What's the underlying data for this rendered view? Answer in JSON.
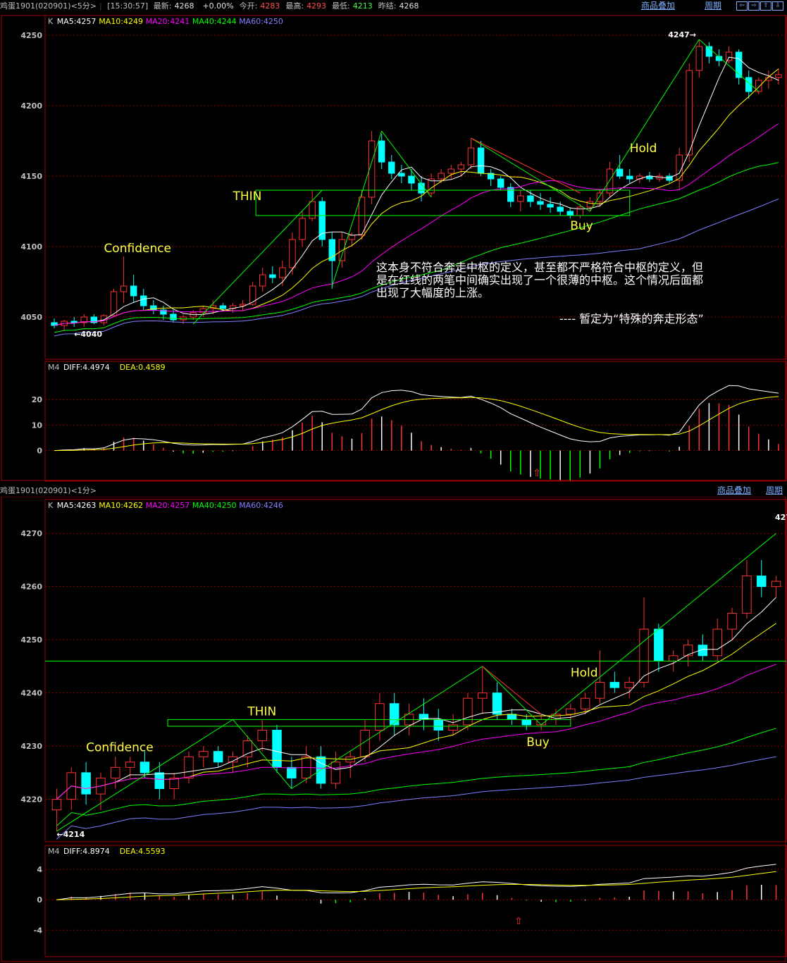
{
  "top_header": {
    "symbol": "鸡蛋1901(020901)<5分>",
    "time": "[15:30:57]",
    "fields": [
      {
        "label": "最新:",
        "value": "4268",
        "color": "#e0e0e0"
      },
      {
        "label": "",
        "value": "+0.00%",
        "color": "#e0e0e0"
      },
      {
        "label": "今开:",
        "value": "4283",
        "color": "#ff5050"
      },
      {
        "label": "最高:",
        "value": "4293",
        "color": "#ff5050"
      },
      {
        "label": "最低:",
        "value": "4213",
        "color": "#40ff40"
      },
      {
        "label": "昨结:",
        "value": "4268",
        "color": "#e0e0e0"
      }
    ],
    "overlay_link": "商品叠加",
    "period_link": "周期",
    "nav_buttons": [
      "⇦",
      "⇨",
      "⇧",
      "⇩"
    ]
  },
  "bottom_header": {
    "symbol": "鸡蛋1901(020901)<1分>",
    "overlay_link": "商品叠加",
    "period_link": "周期"
  },
  "colors": {
    "up": "#ff3232",
    "down": "#00ffff",
    "ma5": "#ffffff",
    "ma10": "#ffff00",
    "ma20": "#ff00ff",
    "ma40": "#00ff00",
    "ma60": "#8080ff",
    "grid": "#8b0000",
    "annot_yellow": "#ffff40"
  },
  "chart_data": [
    {
      "name": "5min-kline",
      "type": "candlestick",
      "legend": {
        "k": "K",
        "ma5": "MA5:4257",
        "ma10": "MA10:4249",
        "ma20": "MA20:4241",
        "ma40": "MA40:4244",
        "ma60": "MA60:4250"
      },
      "ylim": [
        4020,
        4255
      ],
      "yticks": [
        4050,
        4100,
        4150,
        4200,
        4250
      ],
      "ohlc": [
        [
          4046,
          4049,
          4042,
          4044
        ],
        [
          4044,
          4048,
          4040,
          4047
        ],
        [
          4047,
          4050,
          4043,
          4046
        ],
        [
          4046,
          4052,
          4043,
          4050
        ],
        [
          4050,
          4052,
          4045,
          4046
        ],
        [
          4046,
          4052,
          4044,
          4051
        ],
        [
          4051,
          4070,
          4050,
          4068
        ],
        [
          4068,
          4093,
          4060,
          4072
        ],
        [
          4072,
          4080,
          4060,
          4065
        ],
        [
          4065,
          4070,
          4055,
          4058
        ],
        [
          4058,
          4062,
          4052,
          4055
        ],
        [
          4055,
          4058,
          4048,
          4052
        ],
        [
          4052,
          4055,
          4046,
          4048
        ],
        [
          4048,
          4052,
          4045,
          4050
        ],
        [
          4050,
          4055,
          4048,
          4053
        ],
        [
          4053,
          4058,
          4050,
          4056
        ],
        [
          4056,
          4062,
          4052,
          4058
        ],
        [
          4058,
          4060,
          4054,
          4056
        ],
        [
          4056,
          4060,
          4053,
          4058
        ],
        [
          4058,
          4062,
          4055,
          4059
        ],
        [
          4059,
          4075,
          4058,
          4072
        ],
        [
          4072,
          4085,
          4068,
          4080
        ],
        [
          4080,
          4086,
          4074,
          4078
        ],
        [
          4078,
          4090,
          4072,
          4085
        ],
        [
          4085,
          4110,
          4080,
          4105
        ],
        [
          4105,
          4125,
          4100,
          4120
        ],
        [
          4120,
          4140,
          4118,
          4132
        ],
        [
          4132,
          4135,
          4100,
          4105
        ],
        [
          4105,
          4110,
          4070,
          4090
        ],
        [
          4090,
          4110,
          4085,
          4105
        ],
        [
          4105,
          4110,
          4100,
          4108
        ],
        [
          4108,
          4140,
          4105,
          4135
        ],
        [
          4135,
          4182,
          4130,
          4175
        ],
        [
          4175,
          4180,
          4155,
          4160
        ],
        [
          4160,
          4165,
          4148,
          4152
        ],
        [
          4152,
          4158,
          4145,
          4150
        ],
        [
          4150,
          4155,
          4140,
          4145
        ],
        [
          4145,
          4150,
          4132,
          4138
        ],
        [
          4138,
          4152,
          4135,
          4148
        ],
        [
          4148,
          4155,
          4145,
          4152
        ],
        [
          4152,
          4158,
          4148,
          4155
        ],
        [
          4155,
          4160,
          4150,
          4158
        ],
        [
          4158,
          4177,
          4155,
          4170
        ],
        [
          4170,
          4175,
          4150,
          4152
        ],
        [
          4152,
          4155,
          4143,
          4148
        ],
        [
          4148,
          4150,
          4140,
          4142
        ],
        [
          4142,
          4145,
          4128,
          4132
        ],
        [
          4132,
          4140,
          4125,
          4136
        ],
        [
          4136,
          4140,
          4128,
          4132
        ],
        [
          4132,
          4138,
          4126,
          4130
        ],
        [
          4130,
          4135,
          4124,
          4128
        ],
        [
          4128,
          4132,
          4122,
          4125
        ],
        [
          4125,
          4128,
          4120,
          4122
        ],
        [
          4122,
          4130,
          4120,
          4128
        ],
        [
          4128,
          4135,
          4125,
          4132
        ],
        [
          4132,
          4140,
          4128,
          4138
        ],
        [
          4138,
          4160,
          4135,
          4155
        ],
        [
          4155,
          4165,
          4148,
          4150
        ],
        [
          4150,
          4155,
          4145,
          4148
        ],
        [
          4148,
          4152,
          4145,
          4150
        ],
        [
          4150,
          4153,
          4146,
          4148
        ],
        [
          4148,
          4152,
          4146,
          4150
        ],
        [
          4150,
          4152,
          4145,
          4147
        ],
        [
          4147,
          4170,
          4140,
          4165
        ],
        [
          4165,
          4230,
          4160,
          4225
        ],
        [
          4225,
          4247,
          4220,
          4242
        ],
        [
          4242,
          4245,
          4230,
          4235
        ],
        [
          4235,
          4240,
          4228,
          4232
        ],
        [
          4232,
          4242,
          4230,
          4238
        ],
        [
          4238,
          4240,
          4215,
          4220
        ],
        [
          4220,
          4225,
          4205,
          4210
        ],
        [
          4210,
          4220,
          4208,
          4218
        ],
        [
          4218,
          4225,
          4212,
          4220
        ],
        [
          4220,
          4226,
          4215,
          4222
        ]
      ],
      "annotations": [
        {
          "text": "Confidence",
          "color": "#ffff40"
        },
        {
          "text": "THIN",
          "color": "#ffff40"
        },
        {
          "text": "Buy",
          "color": "#ffff40"
        },
        {
          "text": "Hold",
          "color": "#ffff40"
        }
      ],
      "note_lines": [
        "这本身不符合奔走中枢的定义，甚至都不严格符合中枢的定义，但",
        "是在红线的两笔中间确实出现了一个很薄的中枢。这个情况后面都",
        "出现了大幅度的上涨。"
      ],
      "note_sign": "----    暂定为“特殊的奔走形态”",
      "low_label": "←4040",
      "high_label": "4247→"
    },
    {
      "name": "5min-macd",
      "type": "macd",
      "legend": {
        "m": "M4",
        "diff": "DIFF:4.4974",
        "dea": "DEA:0.4589"
      },
      "ylim": [
        -12,
        30
      ],
      "yticks": [
        0,
        10,
        20
      ],
      "arrow": "⇧"
    },
    {
      "name": "1min-kline",
      "type": "candlestick",
      "legend": {
        "k": "K",
        "ma5": "MA5:4263",
        "ma10": "MA10:4262",
        "ma20": "MA20:4257",
        "ma40": "MA40:4250",
        "ma60": "MA60:4246"
      },
      "ylim": [
        4212,
        4274
      ],
      "yticks": [
        4220,
        4230,
        4240,
        4250,
        4260,
        4270
      ],
      "ohlc": [
        [
          4218,
          4222,
          4214,
          4220
        ],
        [
          4220,
          4226,
          4218,
          4225
        ],
        [
          4225,
          4227,
          4219,
          4221
        ],
        [
          4221,
          4225,
          4218,
          4224
        ],
        [
          4224,
          4228,
          4222,
          4226
        ],
        [
          4226,
          4228,
          4224,
          4227
        ],
        [
          4227,
          4229,
          4224,
          4225
        ],
        [
          4225,
          4227,
          4220,
          4222
        ],
        [
          4222,
          4225,
          4220,
          4224
        ],
        [
          4224,
          4229,
          4223,
          4228
        ],
        [
          4228,
          4230,
          4226,
          4229
        ],
        [
          4229,
          4230,
          4226,
          4227
        ],
        [
          4227,
          4229,
          4225,
          4228
        ],
        [
          4228,
          4232,
          4226,
          4231
        ],
        [
          4231,
          4235,
          4229,
          4233
        ],
        [
          4233,
          4234,
          4225,
          4226
        ],
        [
          4226,
          4228,
          4222,
          4224
        ],
        [
          4224,
          4230,
          4223,
          4228
        ],
        [
          4228,
          4230,
          4222,
          4223
        ],
        [
          4223,
          4229,
          4222,
          4227
        ],
        [
          4227,
          4229,
          4224,
          4228
        ],
        [
          4228,
          4235,
          4227,
          4233
        ],
        [
          4233,
          4240,
          4231,
          4238
        ],
        [
          4238,
          4240,
          4232,
          4234
        ],
        [
          4234,
          4238,
          4232,
          4236
        ],
        [
          4236,
          4239,
          4233,
          4235
        ],
        [
          4235,
          4237,
          4231,
          4233
        ],
        [
          4233,
          4236,
          4232,
          4234
        ],
        [
          4234,
          4240,
          4233,
          4239
        ],
        [
          4239,
          4245,
          4236,
          4240
        ],
        [
          4240,
          4242,
          4235,
          4236
        ],
        [
          4236,
          4237,
          4234,
          4235
        ],
        [
          4235,
          4236,
          4233,
          4234
        ],
        [
          4234,
          4236,
          4233,
          4235
        ],
        [
          4235,
          4237,
          4234,
          4236
        ],
        [
          4236,
          4238,
          4235,
          4237
        ],
        [
          4237,
          4240,
          4236,
          4239
        ],
        [
          4239,
          4248,
          4238,
          4242
        ],
        [
          4242,
          4244,
          4240,
          4241
        ],
        [
          4241,
          4243,
          4239,
          4242
        ],
        [
          4242,
          4258,
          4241,
          4252
        ],
        [
          4252,
          4253,
          4244,
          4246
        ],
        [
          4246,
          4248,
          4244,
          4247
        ],
        [
          4247,
          4250,
          4245,
          4249
        ],
        [
          4249,
          4251,
          4246,
          4247
        ],
        [
          4247,
          4254,
          4246,
          4252
        ],
        [
          4252,
          4256,
          4250,
          4255
        ],
        [
          4255,
          4265,
          4254,
          4262
        ],
        [
          4262,
          4265,
          4258,
          4260
        ],
        [
          4260,
          4262,
          4258,
          4261
        ]
      ],
      "annotations": [
        {
          "text": "Confidence",
          "color": "#ffff40"
        },
        {
          "text": "THIN",
          "color": "#ffff40"
        },
        {
          "text": "Buy",
          "color": "#ffff40"
        },
        {
          "text": "Hold",
          "color": "#ffff40"
        }
      ],
      "low_label": "←4214",
      "high_label": "427"
    },
    {
      "name": "1min-macd",
      "type": "macd",
      "legend": {
        "m": "M4",
        "diff": "DIFF:4.8974",
        "dea": "DEA:4.5593"
      },
      "ylim": [
        -7.5,
        5.5
      ],
      "yticks": [
        -4,
        0,
        4
      ],
      "arrow": "⇧"
    }
  ]
}
